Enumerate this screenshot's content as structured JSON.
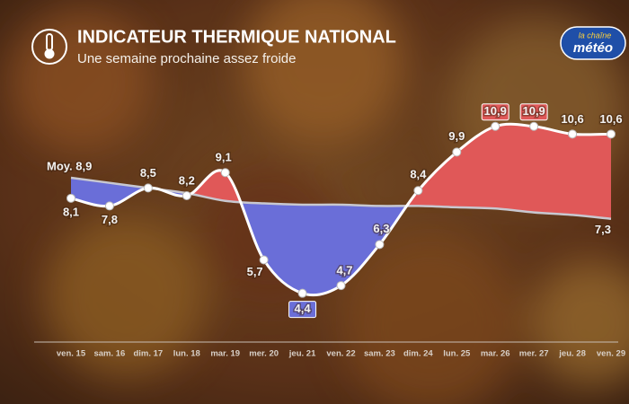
{
  "chart_data": {
    "type": "line",
    "title": "INDICATEUR THERMIQUE NATIONAL",
    "subtitle": "Une semaine prochaine assez froide",
    "brand": {
      "top": "la chaîne",
      "bottom": "météo"
    },
    "categories": [
      "ven. 15",
      "sam. 16",
      "dim. 17",
      "lun. 18",
      "mar. 19",
      "mer. 20",
      "jeu. 21",
      "ven. 22",
      "sam. 23",
      "dim. 24",
      "lun. 25",
      "mar. 26",
      "mer. 27",
      "jeu. 28",
      "ven. 29"
    ],
    "series": [
      {
        "name": "Indicateur",
        "color": "#ffffff",
        "values": [
          8.1,
          7.8,
          8.5,
          8.2,
          9.1,
          5.7,
          4.4,
          4.7,
          6.3,
          8.4,
          9.9,
          10.9,
          10.9,
          10.6,
          10.6
        ],
        "value_labels": [
          "8,1",
          "7,8",
          "8,5",
          "8,2",
          "9,1",
          "5,7",
          "4,4",
          "4,7",
          "6,3",
          "8,4",
          "9,9",
          "10,9",
          "10,9",
          "10,6",
          "10,6"
        ]
      },
      {
        "name": "Moy.",
        "color": "#c8c8d0",
        "values": [
          8.9,
          8.7,
          8.5,
          8.3,
          8.0,
          7.9,
          7.85,
          7.85,
          7.8,
          7.8,
          7.75,
          7.7,
          7.55,
          7.45,
          7.3
        ],
        "value_labels": [
          "Moy. 8,9",
          null,
          null,
          null,
          null,
          null,
          null,
          null,
          null,
          null,
          null,
          null,
          null,
          null,
          "7,3"
        ]
      }
    ],
    "above_color": "#e05858",
    "below_color": "#6a6ed8",
    "highlighted_points": [
      6,
      11,
      12
    ],
    "ylim": [
      2.5,
      12.5
    ]
  }
}
